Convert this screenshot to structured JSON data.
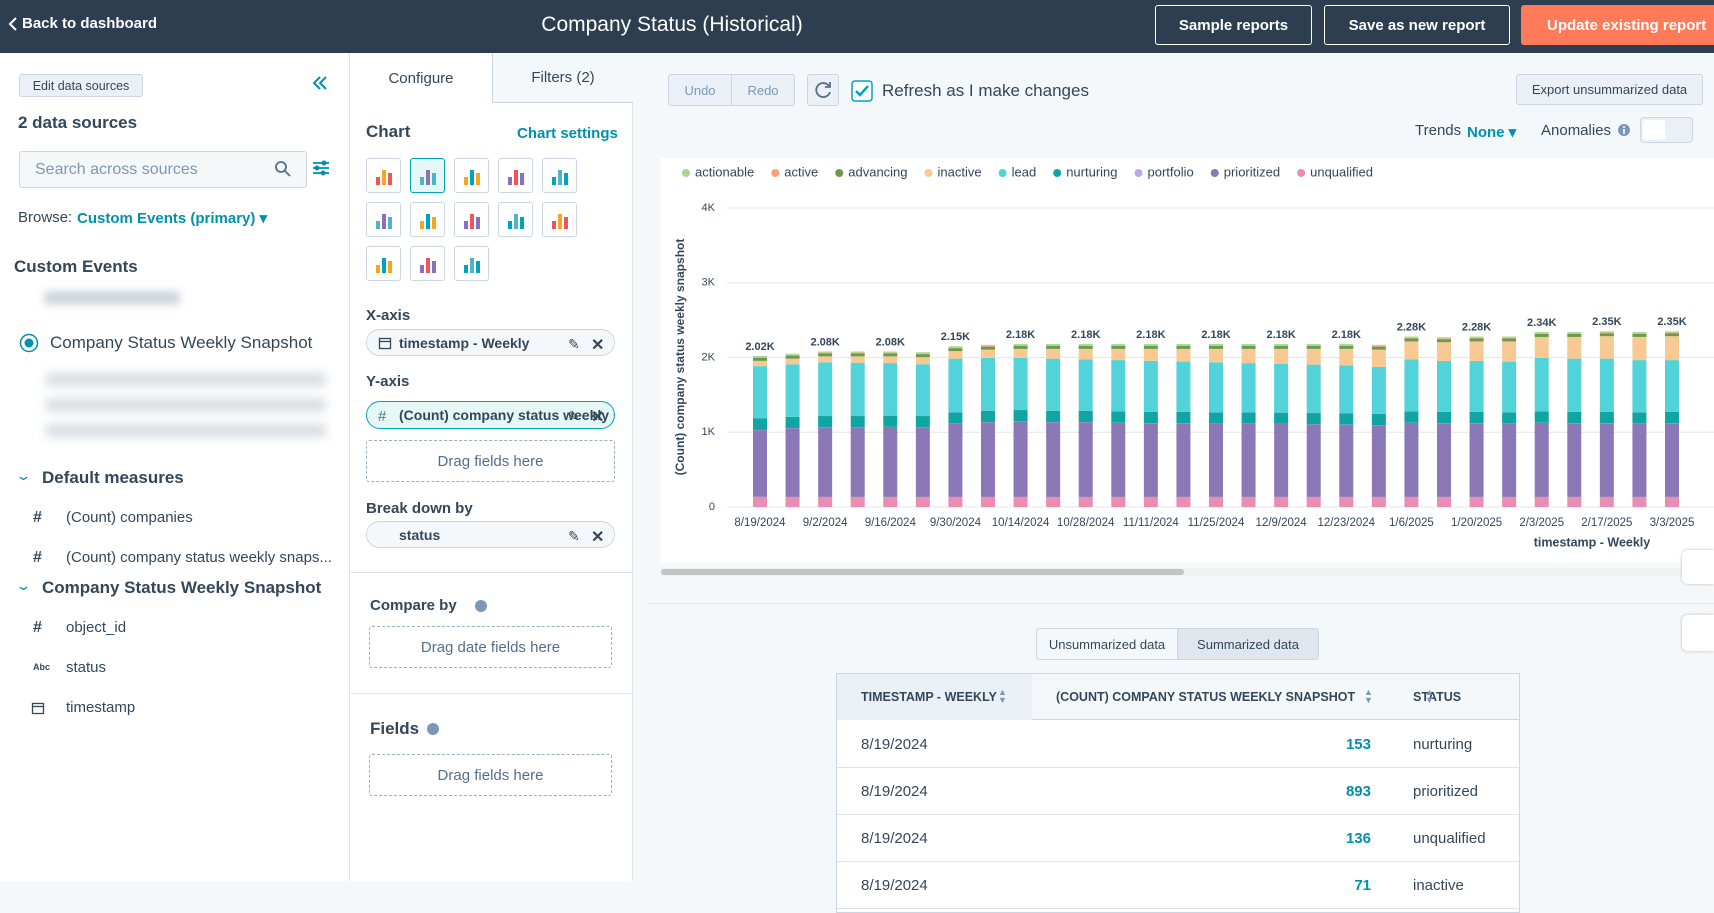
{
  "header": {
    "back": "Back to dashboard",
    "title": "Company Status (Historical)",
    "buttons": [
      "Sample reports",
      "Save as new report",
      "Update existing report"
    ]
  },
  "sources": {
    "edit": "Edit data sources",
    "count": "2 data sources",
    "search_placeholder": "Search across sources",
    "browse_label": "Browse:",
    "browse_value": "Custom Events (primary)",
    "section": "Custom Events",
    "selected": "Company Status Weekly Snapshot",
    "groups": [
      {
        "title": "Default measures",
        "fields": [
          {
            "icon": "#",
            "name": "(Count) companies"
          },
          {
            "icon": "#",
            "name": "(Count) company status weekly snaps..."
          }
        ]
      },
      {
        "title": "Company Status Weekly Snapshot",
        "fields": [
          {
            "icon": "#",
            "name": "object_id"
          },
          {
            "icon": "Abc",
            "name": "status"
          },
          {
            "name": "timestamp"
          }
        ]
      }
    ]
  },
  "config": {
    "tabs": [
      "Configure",
      "Filters (2)"
    ],
    "chart_heading": "Chart",
    "chart_settings": "Chart settings",
    "x_axis": "X-axis",
    "x_field": "timestamp - Weekly",
    "y_axis": "Y-axis",
    "y_field": "(Count) company status weekly snapshot",
    "y_drop": "Drag fields here",
    "breakdown": "Break down by",
    "breakdown_field": "status",
    "compare": "Compare by",
    "compare_drop": "Drag date fields here",
    "fields": "Fields",
    "fields_drop": "Drag fields here"
  },
  "toolbar": {
    "undo": "Undo",
    "redo": "Redo",
    "refresh": "Refresh as I make changes",
    "export": "Export unsummarized data",
    "trends": "Trends",
    "trends_value": "None",
    "anomalies": "Anomalies"
  },
  "chart_data": {
    "type": "bar",
    "stacked": true,
    "y_label": "(Count) company status weekly snapshot",
    "x_label": "timestamp - Weekly",
    "ylim": [
      0,
      4000
    ],
    "yticks": [
      0,
      {
        "value": 1000,
        "label": "1K"
      },
      {
        "value": 2000,
        "label": "2K"
      },
      {
        "value": 3000,
        "label": "3K"
      },
      {
        "value": 4000,
        "label": "4K"
      }
    ],
    "grid": true,
    "categories": [
      "8/19/2024",
      null,
      "9/2/2024",
      null,
      "9/16/2024",
      null,
      "9/30/2024",
      null,
      "10/14/2024",
      null,
      "10/28/2024",
      null,
      "11/11/2024",
      null,
      "11/25/2024",
      null,
      "12/9/2024",
      null,
      "12/23/2024",
      null,
      "1/6/2025",
      null,
      "1/20/2025",
      null,
      "2/3/2025",
      null,
      "2/17/2025",
      null,
      "3/3/2025"
    ],
    "series": [
      {
        "name": "actionable",
        "color": "#a6d98f",
        "values": [
          15,
          15,
          15,
          15,
          15,
          15,
          15,
          15,
          15,
          15,
          15,
          15,
          15,
          15,
          15,
          15,
          15,
          15,
          15,
          15,
          15,
          15,
          15,
          15,
          15,
          15,
          15,
          15,
          15
        ]
      },
      {
        "name": "active",
        "color": "#f5a27c",
        "values": [
          10,
          10,
          10,
          10,
          10,
          10,
          10,
          10,
          10,
          10,
          10,
          10,
          10,
          10,
          10,
          10,
          10,
          10,
          10,
          10,
          10,
          10,
          10,
          10,
          10,
          10,
          10,
          10,
          10
        ]
      },
      {
        "name": "advancing",
        "color": "#6b9a4f",
        "values": [
          40,
          40,
          40,
          40,
          40,
          40,
          40,
          40,
          40,
          40,
          40,
          40,
          40,
          40,
          40,
          40,
          40,
          40,
          40,
          40,
          40,
          40,
          40,
          40,
          40,
          40,
          40,
          40,
          40
        ]
      },
      {
        "name": "inactive",
        "color": "#f8c992",
        "values": [
          71,
          75,
          80,
          85,
          90,
          95,
          100,
          110,
          120,
          130,
          140,
          150,
          160,
          170,
          180,
          190,
          200,
          210,
          220,
          230,
          240,
          250,
          260,
          270,
          280,
          290,
          300,
          310,
          320
        ]
      },
      {
        "name": "lead",
        "color": "#51d3d9",
        "values": [
          700,
          703,
          718,
          713,
          703,
          693,
          718,
          708,
          698,
          698,
          688,
          688,
          683,
          673,
          668,
          658,
          653,
          648,
          643,
          628,
          698,
          683,
          683,
          678,
          718,
          713,
          713,
          698,
          693
        ]
      },
      {
        "name": "nurturing",
        "color": "#10a5a1",
        "values": [
          153,
          150,
          150,
          150,
          150,
          150,
          150,
          150,
          150,
          150,
          150,
          150,
          150,
          150,
          150,
          150,
          150,
          150,
          150,
          150,
          150,
          150,
          150,
          150,
          150,
          150,
          150,
          150,
          150
        ]
      },
      {
        "name": "portfolio",
        "color": "#bba8ea",
        "values": [
          2,
          2,
          2,
          2,
          2,
          2,
          2,
          2,
          2,
          2,
          2,
          2,
          2,
          2,
          2,
          2,
          2,
          2,
          2,
          2,
          2,
          2,
          2,
          2,
          2,
          2,
          2,
          2,
          2
        ]
      },
      {
        "name": "prioritized",
        "color": "#8b78b7",
        "values": [
          893,
          920,
          930,
          930,
          935,
          930,
          980,
          1000,
          1010,
          1000,
          1000,
          990,
          985,
          985,
          980,
          980,
          975,
          970,
          965,
          960,
          990,
          985,
          985,
          980,
          990,
          985,
          985,
          980,
          985
        ]
      },
      {
        "name": "unqualified",
        "color": "#ea8db3",
        "values": [
          136,
          135,
          135,
          135,
          135,
          135,
          135,
          135,
          135,
          135,
          135,
          135,
          135,
          135,
          135,
          135,
          135,
          135,
          135,
          135,
          135,
          135,
          135,
          135,
          135,
          135,
          135,
          135,
          135
        ]
      }
    ],
    "totals": {
      "values": [
        2020,
        null,
        2080,
        null,
        2080,
        null,
        2150,
        null,
        2180,
        null,
        2180,
        null,
        2180,
        null,
        2180,
        null,
        2180,
        null,
        2180,
        null,
        2280,
        null,
        2280,
        null,
        2340,
        null,
        2350,
        null,
        2350
      ],
      "value_labels": [
        "2.02K",
        null,
        "2.08K",
        null,
        "2.08K",
        null,
        "2.15K",
        null,
        "2.18K",
        null,
        "2.18K",
        null,
        "2.18K",
        null,
        "2.18K",
        null,
        "2.18K",
        null,
        "2.18K",
        null,
        "2.28K",
        null,
        "2.28K",
        null,
        "2.34K",
        null,
        "2.35K",
        null,
        "2.35K"
      ]
    }
  },
  "data_tabs": [
    "Unsummarized data",
    "Summarized data"
  ],
  "table": {
    "columns": [
      "TIMESTAMP - WEEKLY",
      "(COUNT) COMPANY STATUS WEEKLY SNAPSHOT",
      "STATUS"
    ],
    "rows": [
      [
        "8/19/2024",
        153,
        "nurturing"
      ],
      [
        "8/19/2024",
        893,
        "prioritized"
      ],
      [
        "8/19/2024",
        136,
        "unqualified"
      ],
      [
        "8/19/2024",
        71,
        "inactive"
      ]
    ]
  }
}
